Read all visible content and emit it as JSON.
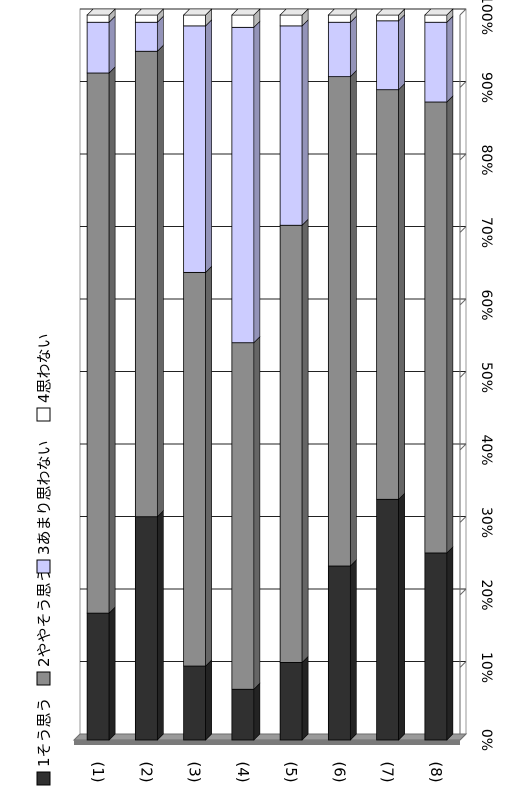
{
  "chart_data": {
    "type": "bar",
    "stacked": true,
    "percent": true,
    "orientation": "horizontal",
    "categories": [
      "(1)",
      "(2)",
      "(3)",
      "(4)",
      "(5)",
      "(6)",
      "(7)",
      "(8)"
    ],
    "series": [
      {
        "name": "1そう思う",
        "color": "#303030",
        "values": [
          17.5,
          30.8,
          10.2,
          7.0,
          10.7,
          24.0,
          33.2,
          25.8
        ]
      },
      {
        "name": "2ややそう思う",
        "color": "#8c8c8c",
        "values": [
          74.5,
          64.2,
          54.3,
          47.8,
          60.3,
          67.5,
          56.5,
          62.2
        ]
      },
      {
        "name": "3あまり思わない",
        "color": "#ccccff",
        "values": [
          7.0,
          4.0,
          34.0,
          43.5,
          27.5,
          7.5,
          9.5,
          11.0
        ]
      },
      {
        "name": "4思わない",
        "color": "#ffffff",
        "values": [
          1.0,
          1.0,
          1.5,
          1.7,
          1.5,
          1.0,
          0.8,
          1.0
        ]
      }
    ],
    "xlim": [
      0,
      100
    ],
    "ticks": [
      "0%",
      "10%",
      "20%",
      "30%",
      "40%",
      "50%",
      "60%",
      "70%",
      "80%",
      "90%",
      "100%"
    ],
    "grid": true,
    "legend_position": "left"
  }
}
